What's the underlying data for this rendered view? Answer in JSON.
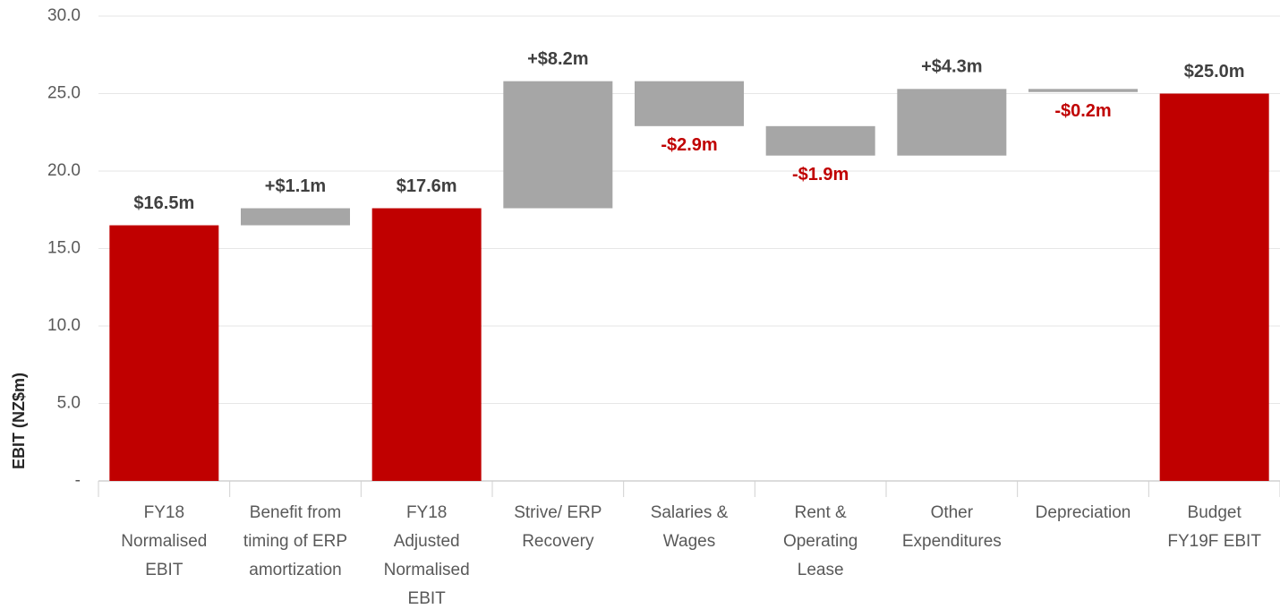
{
  "chart_data": {
    "type": "waterfall",
    "y_label": "EBIT (NZ$m)",
    "categories": [
      [
        "FY18",
        "Normalised",
        "EBIT"
      ],
      [
        "Benefit from",
        "timing of ERP",
        "amortization"
      ],
      [
        "FY18",
        "Adjusted",
        "Normalised",
        "EBIT"
      ],
      [
        "Strive/ ERP",
        "Recovery"
      ],
      [
        "Salaries &",
        "Wages"
      ],
      [
        "Rent &",
        "Operating",
        "Lease"
      ],
      [
        "Other",
        "Expenditures"
      ],
      [
        "Depreciation"
      ],
      [
        "Budget",
        "FY19F EBIT"
      ]
    ],
    "measure": [
      "total",
      "relative",
      "total",
      "relative",
      "relative",
      "relative",
      "relative",
      "relative",
      "total"
    ],
    "values": [
      16.5,
      1.1,
      17.6,
      8.2,
      -2.9,
      -1.9,
      4.3,
      -0.2,
      25.0
    ],
    "value_labels": [
      "$16.5m",
      "+$1.1m",
      "$17.6m",
      "+$8.2m",
      "-$2.9m",
      "-$1.9m",
      "+$4.3m",
      "-$0.2m",
      "$25.0m"
    ],
    "total_color": "#c00000",
    "delta_color": "#a6a6a6",
    "positive_label_color": "#404040",
    "negative_label_color": "#c00000",
    "ylim": [
      0,
      30
    ],
    "yticks": [
      {
        "value": 0,
        "label": "-"
      },
      {
        "value": 5,
        "label": "5.0"
      },
      {
        "value": 10,
        "label": "10.0"
      },
      {
        "value": 15,
        "label": "15.0"
      },
      {
        "value": 20,
        "label": "20.0"
      },
      {
        "value": 25,
        "label": "25.0"
      },
      {
        "value": 30,
        "label": "30.0"
      }
    ],
    "grid": true
  }
}
